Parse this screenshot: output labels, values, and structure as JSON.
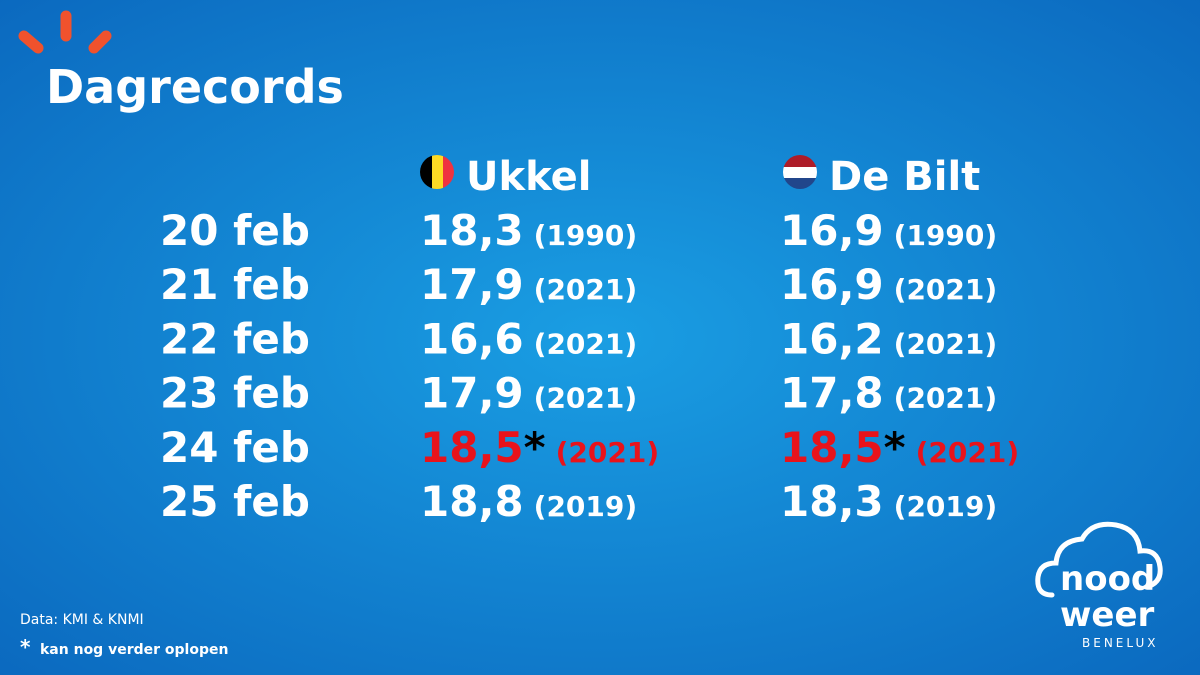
{
  "header": {
    "title": "Dagrecords"
  },
  "table": {
    "columns": [
      "Ukkel",
      "De Bilt"
    ],
    "rows": [
      {
        "date": "20 feb",
        "cells": [
          {
            "value": "18,3",
            "year": "(1990)"
          },
          {
            "value": "16,9",
            "year": "(1990)"
          }
        ]
      },
      {
        "date": "21 feb",
        "cells": [
          {
            "value": "17,9",
            "year": "(2021)"
          },
          {
            "value": "16,9",
            "year": "(2021)"
          }
        ]
      },
      {
        "date": "22 feb",
        "cells": [
          {
            "value": "16,6",
            "year": "(2021)"
          },
          {
            "value": "16,2",
            "year": "(2021)"
          }
        ]
      },
      {
        "date": "23 feb",
        "cells": [
          {
            "value": "17,9",
            "year": "(2021)"
          },
          {
            "value": "17,8",
            "year": "(2021)"
          }
        ]
      },
      {
        "date": "24 feb",
        "cells": [
          {
            "value": "18,5",
            "note": "*",
            "year": "(2021)"
          },
          {
            "value": "18,5",
            "note": "*",
            "year": "(2021)"
          }
        ]
      },
      {
        "date": "25 feb",
        "cells": [
          {
            "value": "18,8",
            "year": "(2019)"
          },
          {
            "value": "18,3",
            "year": "(2019)"
          }
        ]
      }
    ]
  },
  "footer": {
    "source": "Data: KMI & KNMI",
    "note_marker": "*",
    "note": "kan nog verder oplopen"
  },
  "logo": {
    "line1": "nood",
    "line2": "weer",
    "line3": "BENELUX"
  }
}
